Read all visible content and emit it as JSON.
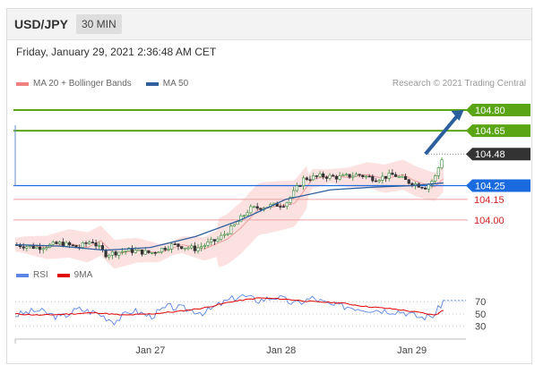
{
  "header": {
    "symbol": "USD/JPY",
    "interval": "30 MIN"
  },
  "datetime": "Friday, January 29, 2021 2:36:48 AM CET",
  "legend": {
    "ma20_label": "MA 20 + Bollinger Bands",
    "ma20_color": "#f08080",
    "ma50_label": "MA 50",
    "ma50_color": "#2f5f9f",
    "copyright": "Research © 2021 Trading Central"
  },
  "rsi_legend": {
    "rsi_label": "RSI",
    "rsi_color": "#5b86e5",
    "ma9_label": "9MA",
    "ma9_color": "#e00000"
  },
  "colors": {
    "resistance": "#5aa514",
    "support": "#1a6be0",
    "last": "#333333",
    "pivot": "#d42020",
    "arrow": "#2c5f9e",
    "candle_up": "#3a8a3a",
    "candle_down": "#333333",
    "bollinger_fill": "#fbd9d9"
  },
  "chart_data": {
    "type": "candlestick",
    "x_ticks": [
      "Jan 27",
      "Jan 28",
      "Jan 29"
    ],
    "ylim": [
      103.7,
      104.95
    ],
    "levels": [
      {
        "value": 104.8,
        "label": "104.80",
        "kind": "resistance"
      },
      {
        "value": 104.65,
        "label": "104.65",
        "kind": "resistance"
      },
      {
        "value": 104.48,
        "label": "104.48",
        "kind": "last"
      },
      {
        "value": 104.25,
        "label": "104.25",
        "kind": "support"
      },
      {
        "value": 104.15,
        "label": "104.15",
        "kind": "pivot"
      },
      {
        "value": 104.0,
        "label": "104.00",
        "kind": "pivot"
      }
    ],
    "series": [
      {
        "name": "MA 50",
        "x": [
          0,
          0.1,
          0.2,
          0.3,
          0.4,
          0.5,
          0.6,
          0.7,
          0.8,
          0.88,
          0.95
        ],
        "values": [
          103.82,
          103.81,
          103.78,
          103.8,
          103.88,
          104.0,
          104.15,
          104.22,
          104.24,
          104.25,
          104.27
        ]
      }
    ],
    "price_path": [
      [
        0.0,
        103.82
      ],
      [
        0.05,
        103.8
      ],
      [
        0.1,
        103.83
      ],
      [
        0.14,
        103.8
      ],
      [
        0.17,
        103.85
      ],
      [
        0.2,
        103.75
      ],
      [
        0.25,
        103.78
      ],
      [
        0.3,
        103.76
      ],
      [
        0.35,
        103.82
      ],
      [
        0.4,
        103.79
      ],
      [
        0.45,
        103.86
      ],
      [
        0.48,
        103.94
      ],
      [
        0.52,
        104.08
      ],
      [
        0.56,
        104.1
      ],
      [
        0.6,
        104.12
      ],
      [
        0.64,
        104.3
      ],
      [
        0.68,
        104.32
      ],
      [
        0.72,
        104.31
      ],
      [
        0.76,
        104.33
      ],
      [
        0.8,
        104.3
      ],
      [
        0.84,
        104.33
      ],
      [
        0.87,
        104.28
      ],
      [
        0.91,
        104.24
      ],
      [
        0.93,
        104.3
      ],
      [
        0.95,
        104.48
      ]
    ],
    "rsi": {
      "ticks": [
        70,
        50,
        30
      ],
      "ylim": [
        15,
        95
      ],
      "rsi_path": [
        [
          0.0,
          48
        ],
        [
          0.05,
          56
        ],
        [
          0.1,
          44
        ],
        [
          0.14,
          58
        ],
        [
          0.18,
          52
        ],
        [
          0.22,
          38
        ],
        [
          0.26,
          56
        ],
        [
          0.3,
          46
        ],
        [
          0.34,
          62
        ],
        [
          0.38,
          58
        ],
        [
          0.42,
          52
        ],
        [
          0.46,
          68
        ],
        [
          0.5,
          80
        ],
        [
          0.54,
          72
        ],
        [
          0.58,
          78
        ],
        [
          0.62,
          66
        ],
        [
          0.66,
          76
        ],
        [
          0.7,
          64
        ],
        [
          0.74,
          62
        ],
        [
          0.78,
          58
        ],
        [
          0.82,
          56
        ],
        [
          0.86,
          54
        ],
        [
          0.9,
          44
        ],
        [
          0.93,
          48
        ],
        [
          0.95,
          72
        ]
      ],
      "ma9_path": [
        [
          0.0,
          50
        ],
        [
          0.06,
          48
        ],
        [
          0.12,
          50
        ],
        [
          0.18,
          52
        ],
        [
          0.24,
          48
        ],
        [
          0.3,
          50
        ],
        [
          0.36,
          54
        ],
        [
          0.42,
          60
        ],
        [
          0.48,
          70
        ],
        [
          0.54,
          76
        ],
        [
          0.6,
          74
        ],
        [
          0.66,
          70
        ],
        [
          0.72,
          68
        ],
        [
          0.78,
          62
        ],
        [
          0.84,
          58
        ],
        [
          0.9,
          52
        ],
        [
          0.93,
          48
        ],
        [
          0.95,
          56
        ]
      ]
    }
  }
}
